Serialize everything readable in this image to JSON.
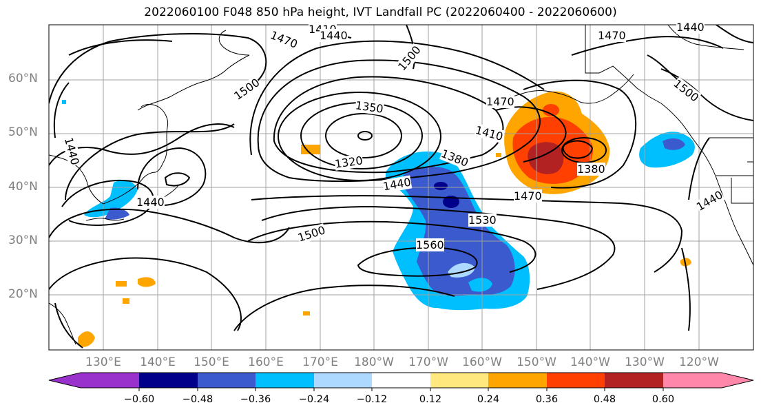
{
  "title": "2022060100 F048 850 hPa height, IVT Landfall PC (2022060400 - 2022060600)",
  "map": {
    "lat_labels": [
      "60°N",
      "50°N",
      "40°N",
      "30°N",
      "20°N"
    ],
    "lon_labels": [
      "130°E",
      "140°E",
      "150°E",
      "160°E",
      "170°E",
      "180°W",
      "170°W",
      "160°W",
      "150°W",
      "140°W",
      "130°W",
      "120°W"
    ],
    "contour_labels": [
      "1410",
      "1440",
      "1470",
      "1500",
      "1500",
      "1470",
      "1440",
      "1470",
      "1500",
      "1350",
      "1410",
      "1320",
      "1380",
      "1380",
      "1440",
      "1440",
      "1470",
      "1530",
      "1500",
      "1560",
      "1440",
      "1440"
    ],
    "coastline_color": "#000000",
    "contour_color": "#000000"
  },
  "colorbar": {
    "ticks": [
      "−0.60",
      "−0.48",
      "−0.36",
      "−0.24",
      "−0.12",
      "0.12",
      "0.24",
      "0.36",
      "0.48",
      "0.60"
    ],
    "colors": [
      "#9932cc",
      "#00008b",
      "#3a5acd",
      "#00bfff",
      "#add8ff",
      "#ffffff",
      "#ffe97f",
      "#ffa500",
      "#ff4000",
      "#b22222",
      "#ff88aa"
    ]
  }
}
